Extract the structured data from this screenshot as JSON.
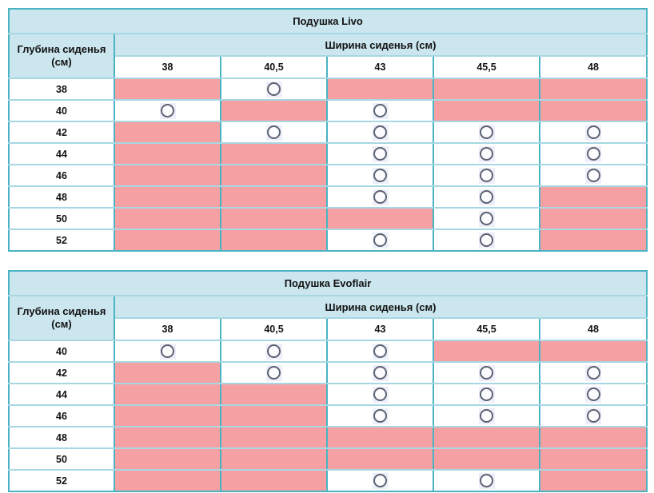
{
  "colors": {
    "border_strong": "#49b3c4",
    "border_light": "#a6d7e2",
    "header_bg": "#cbe6ee",
    "unavailable_bg": "#f5a0a2",
    "radio_outline": "#5d6271",
    "radio_bg": "#edeffa",
    "text": "#111111"
  },
  "icons": {
    "available_marker": "radio-circle-icon"
  },
  "tables": [
    {
      "title": "Подушка Livo",
      "depth_header": "Глубина сиденья (см)",
      "width_header": "Ширина сиденья (см)",
      "width_values": [
        "38",
        "40,5",
        "43",
        "45,5",
        "48"
      ],
      "rows": [
        {
          "depth": "38",
          "available": [
            false,
            true,
            false,
            false,
            false
          ]
        },
        {
          "depth": "40",
          "available": [
            true,
            false,
            true,
            false,
            false
          ]
        },
        {
          "depth": "42",
          "available": [
            false,
            true,
            true,
            true,
            true
          ]
        },
        {
          "depth": "44",
          "available": [
            false,
            false,
            true,
            true,
            true
          ]
        },
        {
          "depth": "46",
          "available": [
            false,
            false,
            true,
            true,
            true
          ]
        },
        {
          "depth": "48",
          "available": [
            false,
            false,
            true,
            true,
            false
          ]
        },
        {
          "depth": "50",
          "available": [
            false,
            false,
            false,
            true,
            false
          ]
        },
        {
          "depth": "52",
          "available": [
            false,
            false,
            true,
            true,
            false
          ]
        }
      ]
    },
    {
      "title": "Подушка Evoflair",
      "depth_header": "Глубина сиденья (см)",
      "width_header": "Ширина сиденья (см)",
      "width_values": [
        "38",
        "40,5",
        "43",
        "45,5",
        "48"
      ],
      "rows": [
        {
          "depth": "40",
          "available": [
            true,
            true,
            true,
            false,
            false
          ]
        },
        {
          "depth": "42",
          "available": [
            false,
            true,
            true,
            true,
            true
          ]
        },
        {
          "depth": "44",
          "available": [
            false,
            false,
            true,
            true,
            true
          ]
        },
        {
          "depth": "46",
          "available": [
            false,
            false,
            true,
            true,
            true
          ]
        },
        {
          "depth": "48",
          "available": [
            false,
            false,
            false,
            false,
            false
          ]
        },
        {
          "depth": "50",
          "available": [
            false,
            false,
            false,
            false,
            false
          ]
        },
        {
          "depth": "52",
          "available": [
            false,
            false,
            true,
            true,
            false
          ]
        }
      ]
    }
  ]
}
